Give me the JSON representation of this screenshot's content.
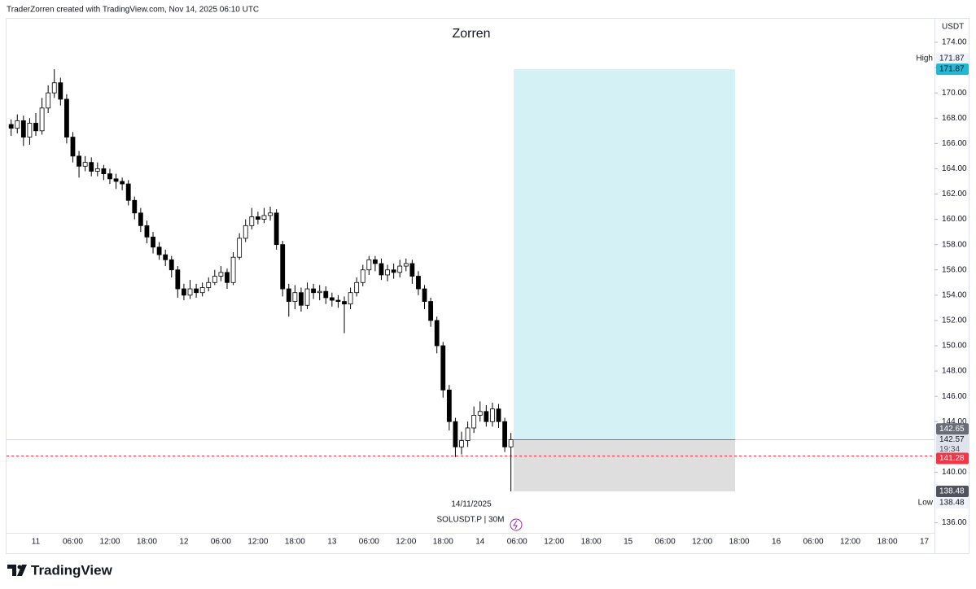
{
  "header": "TraderZorren created with TradingView.com, Nov 14, 2025 06:10 UTC",
  "logo": "TradingView",
  "chart_data": {
    "type": "candlestick",
    "title": "Zorren",
    "currency": "USDT",
    "symbol": "SOLUSDT.P | 30M",
    "date_label": "14/11/2025",
    "open": [
      167.5,
      167.2,
      167.8,
      166.5,
      167.6,
      167.0,
      168.8,
      170.0,
      170.8,
      169.5,
      166.5,
      165.0,
      164.2,
      164.5,
      163.8,
      164.0,
      163.6,
      163.2,
      163.0,
      162.8,
      161.5,
      160.5,
      159.5,
      158.6,
      157.8,
      157.2,
      156.8,
      156.0,
      154.5,
      154.0,
      154.5,
      154.2,
      154.6,
      155.0,
      155.5,
      155.8,
      155.0,
      157.0,
      158.5,
      159.5,
      160.2,
      160.0,
      160.3,
      160.5,
      158.0,
      154.5,
      153.5,
      154.2,
      153.2,
      154.5,
      154.2,
      154.3,
      153.8,
      153.6,
      153.5,
      153.3,
      154.2,
      155.0,
      156.0,
      156.8,
      156.5,
      155.6,
      156.0,
      155.8,
      156.3,
      156.5,
      155.5,
      154.5,
      153.5,
      152.0,
      150.0,
      146.5,
      144.0,
      142.0,
      142.5,
      143.5,
      144.5,
      144.8,
      144.0,
      145.0,
      144.0,
      142.0
    ],
    "high": [
      167.9,
      168.3,
      168.2,
      168.0,
      168.4,
      169.6,
      170.6,
      171.87,
      171.2,
      169.9,
      166.9,
      165.4,
      165.0,
      164.9,
      164.5,
      164.3,
      164.0,
      163.6,
      163.3,
      163.1,
      161.8,
      160.9,
      159.9,
      159.0,
      158.2,
      157.6,
      157.1,
      156.3,
      154.9,
      155.2,
      154.9,
      155.0,
      155.4,
      156.0,
      156.3,
      156.1,
      157.4,
      158.9,
      160.0,
      160.9,
      160.6,
      160.9,
      161.0,
      160.8,
      158.3,
      154.9,
      154.8,
      154.6,
      155.0,
      154.9,
      154.8,
      154.7,
      154.2,
      154.0,
      153.9,
      154.6,
      155.4,
      156.4,
      157.1,
      157.1,
      156.9,
      156.4,
      156.5,
      156.8,
      156.9,
      156.8,
      155.9,
      154.8,
      153.8,
      152.3,
      150.3,
      146.9,
      144.3,
      143.2,
      144.0,
      145.2,
      145.6,
      145.3,
      145.5,
      145.4,
      144.3,
      143.1
    ],
    "low": [
      166.6,
      166.8,
      165.8,
      165.9,
      166.6,
      166.7,
      168.4,
      169.6,
      169.0,
      166.0,
      164.5,
      163.3,
      163.8,
      163.4,
      163.4,
      163.1,
      162.8,
      162.4,
      162.3,
      161.1,
      160.0,
      159.0,
      158.1,
      157.3,
      156.8,
      156.3,
      155.4,
      153.8,
      153.6,
      153.7,
      153.8,
      153.9,
      154.3,
      154.8,
      155.1,
      154.5,
      154.8,
      156.8,
      158.2,
      159.2,
      159.6,
      159.7,
      159.9,
      157.6,
      153.9,
      152.3,
      152.9,
      152.7,
      152.9,
      153.7,
      153.6,
      153.3,
      153.1,
      153.0,
      151.0,
      152.9,
      153.9,
      154.7,
      155.6,
      155.9,
      155.2,
      155.1,
      155.3,
      155.4,
      155.9,
      154.9,
      154.0,
      152.9,
      151.5,
      149.4,
      145.9,
      143.3,
      141.2,
      141.4,
      142.0,
      143.1,
      144.0,
      143.6,
      143.6,
      143.5,
      141.6,
      138.48
    ],
    "close": [
      167.2,
      167.8,
      166.5,
      167.6,
      167.0,
      168.8,
      170.0,
      170.8,
      169.5,
      166.5,
      165.0,
      164.2,
      164.5,
      163.8,
      164.0,
      163.6,
      163.2,
      163.0,
      162.8,
      161.5,
      160.5,
      159.5,
      158.6,
      157.8,
      157.2,
      156.8,
      156.0,
      154.5,
      154.0,
      154.5,
      154.2,
      154.6,
      155.0,
      155.5,
      155.8,
      155.0,
      157.0,
      158.5,
      159.5,
      160.2,
      160.0,
      160.3,
      160.5,
      158.0,
      154.5,
      153.5,
      154.2,
      153.2,
      154.5,
      154.2,
      154.3,
      153.8,
      153.6,
      153.5,
      153.3,
      154.2,
      155.0,
      156.0,
      156.8,
      156.5,
      155.6,
      156.0,
      155.8,
      156.3,
      156.5,
      155.5,
      154.5,
      153.5,
      152.0,
      150.0,
      146.5,
      144.0,
      142.0,
      142.5,
      143.5,
      144.5,
      144.8,
      144.0,
      145.0,
      144.0,
      142.0,
      142.57
    ],
    "up_color": "#ffffff",
    "down_color": "#000000",
    "wick_color": "#000000",
    "ylim": [
      135.2,
      175.93
    ],
    "yticks": [
      {
        "value": 136,
        "label": "136.00"
      },
      {
        "value": 140,
        "label": "140.00"
      },
      {
        "value": 144,
        "label": "144.00"
      },
      {
        "value": 146,
        "label": "146.00"
      },
      {
        "value": 148,
        "label": "148.00"
      },
      {
        "value": 150,
        "label": "150.00"
      },
      {
        "value": 152,
        "label": "152.00"
      },
      {
        "value": 154,
        "label": "154.00"
      },
      {
        "value": 156,
        "label": "156.00"
      },
      {
        "value": 158,
        "label": "158.00"
      },
      {
        "value": 160,
        "label": "160.00"
      },
      {
        "value": 162,
        "label": "162.00"
      },
      {
        "value": 164,
        "label": "164.00"
      },
      {
        "value": 166,
        "label": "166.00"
      },
      {
        "value": 168,
        "label": "168.00"
      },
      {
        "value": 170,
        "label": "170.00"
      },
      {
        "value": 172,
        "label": "172.00"
      },
      {
        "value": 174,
        "label": "174.00"
      }
    ],
    "x_labels": [
      "11",
      "06:00",
      "12:00",
      "18:00",
      "12",
      "06:00",
      "12:00",
      "18:00",
      "13",
      "06:00",
      "12:00",
      "18:00",
      "14",
      "06:00",
      "12:00",
      "18:00",
      "15",
      "06:00",
      "12:00",
      "18:00",
      "16",
      "06:00",
      "12:00",
      "18:00",
      "17"
    ],
    "position": {
      "target": 171.87,
      "entry": 142.57,
      "stop": 138.48,
      "profit_color": "#d4f1f5",
      "loss_color": "#dedede"
    },
    "high_marker": {
      "label": "High",
      "value": 171.87
    },
    "low_marker": {
      "label": "Low",
      "value": 138.48
    },
    "last_price": 142.65,
    "countdown": "19:34",
    "alert_price": 141.28,
    "alert_color": "#f23645"
  }
}
